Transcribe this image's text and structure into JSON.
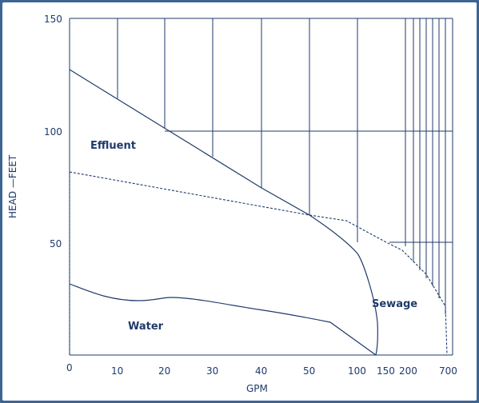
{
  "chart_data": {
    "type": "line",
    "title": "",
    "xlabel": "GPM",
    "ylabel": "HEAD —FEET",
    "x_tick_labels": [
      "0",
      "10",
      "20",
      "30",
      "40",
      "50",
      "100",
      "150",
      "200",
      "700"
    ],
    "y_ticks": [
      50,
      100,
      150
    ],
    "ylim": [
      0,
      150
    ],
    "series": [
      {
        "name": "Effluent",
        "points": [
          [
            0,
            127
          ],
          [
            10,
            115
          ],
          [
            20,
            102
          ],
          [
            30,
            89
          ],
          [
            40,
            75
          ],
          [
            50,
            63
          ],
          [
            60,
            55
          ],
          [
            80,
            45
          ],
          [
            100,
            24
          ],
          [
            130,
            0
          ]
        ]
      },
      {
        "name": "Water",
        "points": [
          [
            0,
            31
          ],
          [
            10,
            27
          ],
          [
            20,
            25
          ],
          [
            30,
            24
          ],
          [
            40,
            22
          ],
          [
            50,
            21
          ],
          [
            60,
            19
          ],
          [
            70,
            17
          ],
          [
            80,
            15
          ],
          [
            100,
            4
          ],
          [
            130,
            0
          ]
        ]
      },
      {
        "name": "Sewage",
        "points": [
          [
            0,
            81
          ],
          [
            10,
            78
          ],
          [
            20,
            75
          ],
          [
            30,
            72
          ],
          [
            40,
            70
          ],
          [
            50,
            64
          ],
          [
            100,
            59
          ],
          [
            200,
            48
          ],
          [
            300,
            43
          ],
          [
            700,
            21
          ]
        ]
      }
    ],
    "annotations": [
      {
        "text": "Effluent"
      },
      {
        "text": "Water"
      },
      {
        "text": "Sewage"
      }
    ],
    "grid": "chart-paper lines in upper-right region above curves"
  },
  "colors": {
    "ink": "#1f3a6b",
    "frame": "#3d6591",
    "background": "#ffffff"
  }
}
